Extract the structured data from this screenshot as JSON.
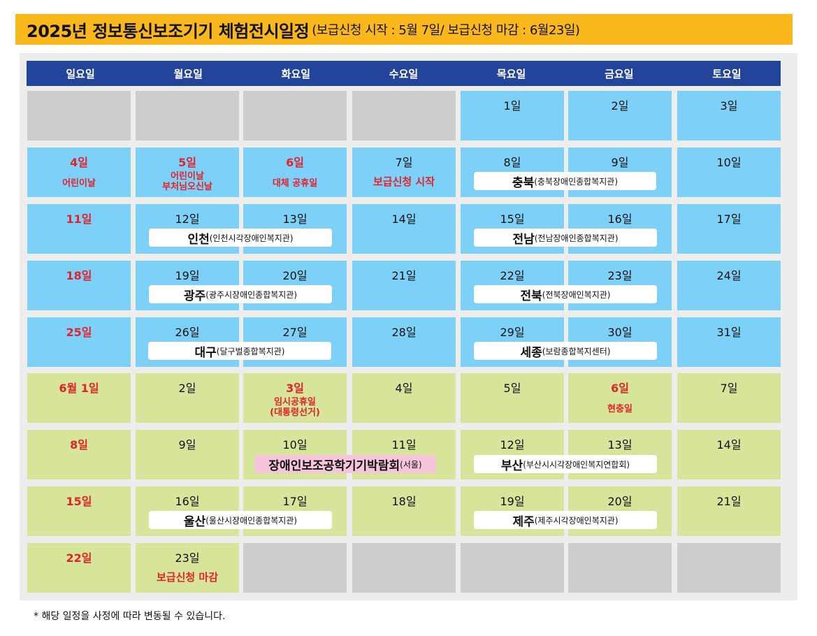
{
  "title": {
    "main": "2025년 정보통신보조기기 체험전시일정",
    "sub": "(보급신청 시작 : 5월 7일/ 보급신청 마감  : 6월23일)"
  },
  "weekdays": [
    "일요일",
    "월요일",
    "화요일",
    "수요일",
    "목요일",
    "금요일",
    "토요일"
  ],
  "days": {
    "r0c4": "1일",
    "r0c5": "2일",
    "r0c6": "3일",
    "r1c0": "4일",
    "r1c1": "5일",
    "r1c2": "6일",
    "r1c3": "7일",
    "r1c4": "8일",
    "r1c5": "9일",
    "r1c6": "10일",
    "r2c0": "11일",
    "r2c1": "12일",
    "r2c2": "13일",
    "r2c3": "14일",
    "r2c4": "15일",
    "r2c5": "16일",
    "r2c6": "17일",
    "r3c0": "18일",
    "r3c1": "19일",
    "r3c2": "20일",
    "r3c3": "21일",
    "r3c4": "22일",
    "r3c5": "23일",
    "r3c6": "24일",
    "r4c0": "25일",
    "r4c1": "26일",
    "r4c2": "27일",
    "r4c3": "28일",
    "r4c4": "29일",
    "r4c5": "30일",
    "r4c6": "31일",
    "r5c0": "6월 1일",
    "r5c1": "2일",
    "r5c2": "3일",
    "r5c3": "4일",
    "r5c4": "5일",
    "r5c5": "6일",
    "r5c6": "7일",
    "r6c0": "8일",
    "r6c1": "9일",
    "r6c2": "10일",
    "r6c3": "11일",
    "r6c4": "12일",
    "r6c5": "13일",
    "r6c6": "14일",
    "r7c0": "15일",
    "r7c1": "16일",
    "r7c2": "17일",
    "r7c3": "18일",
    "r7c4": "19일",
    "r7c5": "20일",
    "r7c6": "21일",
    "r8c0": "22일",
    "r8c1": "23일"
  },
  "notes": {
    "childrens_day": "어린이날",
    "may5_line1": "어린이날",
    "may5_line2": "부처님오신날",
    "substitute_holiday": "대체 공휴일",
    "application_start": "보급신청 시작",
    "june3_line1": "임시공휴일",
    "june3_line2": "(대통령선거)",
    "memorial_day": "현충일",
    "application_end": "보급신청 마감"
  },
  "events": {
    "chungbuk": {
      "main": "충북",
      "sub": "(충북장애인종합복지관)"
    },
    "incheon": {
      "main": "인천",
      "sub": "(인천시각장애인복지관)"
    },
    "jeonnam": {
      "main": "전남",
      "sub": "(전남장애인종합복지관)"
    },
    "gwangju": {
      "main": "광주",
      "sub": "(광주시장애인종합복지관)"
    },
    "jeonbuk": {
      "main": "전북",
      "sub": "(전북장애인복지관)"
    },
    "daegu": {
      "main": "대구",
      "sub": "(달구벌종합복지관)"
    },
    "sejong": {
      "main": "세종",
      "sub": "(보람종합복지센터)"
    },
    "expo": {
      "main": "장애인보조공학기기박람회",
      "sub": "(서울)"
    },
    "busan": {
      "main": "부산",
      "sub": "(부산시시각장애인복지연합회)"
    },
    "ulsan": {
      "main": "울산",
      "sub": "(울산시장애인종합복지관)"
    },
    "jeju": {
      "main": "제주",
      "sub": "(제주시각장애인복지관)"
    }
  },
  "footnote": "* 해당 일정을 사정에 따라 변동될 수 있습니다.",
  "colors": {
    "title_bg": "#fbb81c",
    "header_bg": "#22449a",
    "may_cell": "#7dd0f7",
    "june_cell": "#d6e59a",
    "empty_cell": "#cdcdcd",
    "holiday_text": "#e3232c",
    "expo_bg": "#f6c5dc"
  }
}
